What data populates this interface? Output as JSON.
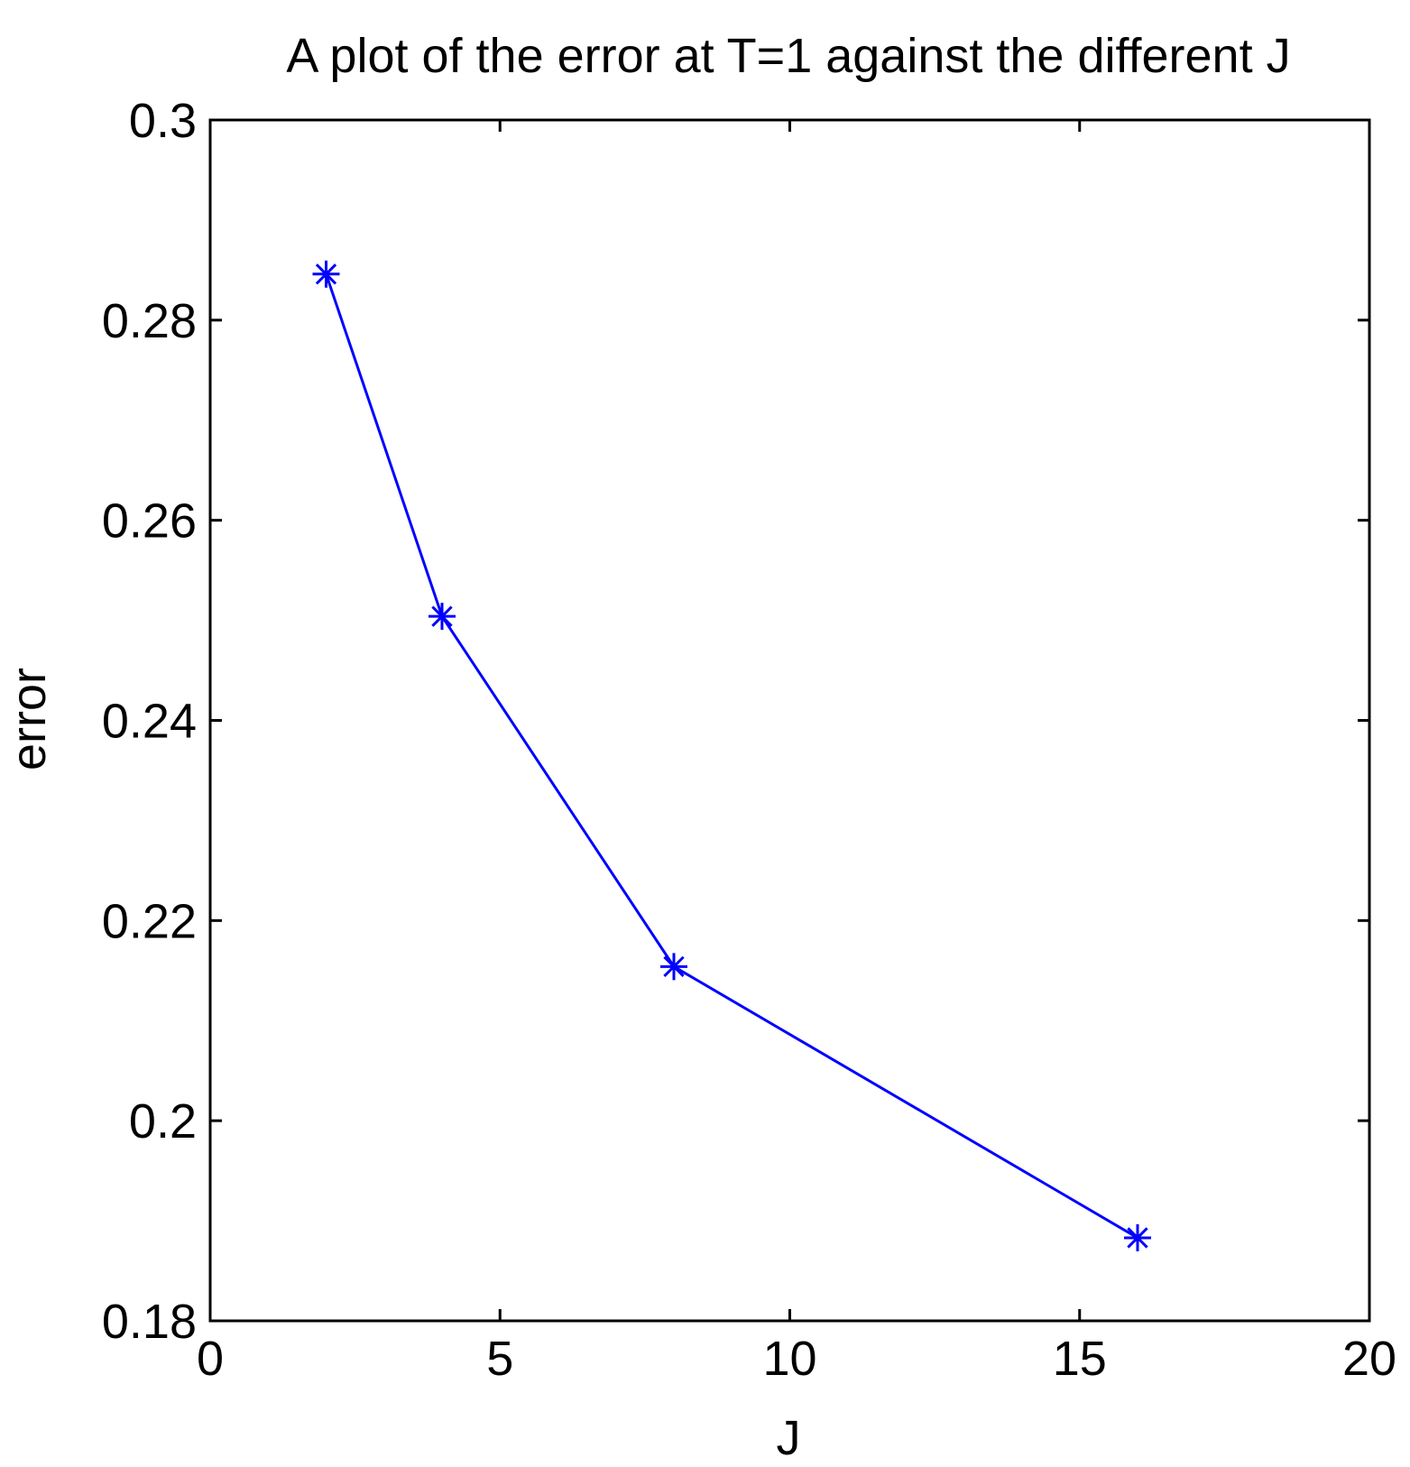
{
  "chart_data": {
    "type": "line",
    "title": "A plot of the error at T=1 against the different J",
    "xlabel": "J",
    "ylabel": "error",
    "xlim": [
      0,
      20
    ],
    "ylim": [
      0.18,
      0.3
    ],
    "xticks": [
      0,
      5,
      10,
      15,
      20
    ],
    "xtick_labels": [
      "0",
      "5",
      "10",
      "15",
      "20"
    ],
    "yticks": [
      0.18,
      0.2,
      0.22,
      0.24,
      0.26,
      0.28,
      0.3
    ],
    "ytick_labels": [
      "0.18",
      "0.2",
      "0.22",
      "0.24",
      "0.26",
      "0.28",
      "0.3"
    ],
    "grid": false,
    "series": [
      {
        "marker": "asterisk",
        "color": "#0000ff",
        "x": [
          2,
          4,
          8,
          16
        ],
        "y": [
          0.2846,
          0.2504,
          0.2154,
          0.1883
        ]
      }
    ]
  }
}
